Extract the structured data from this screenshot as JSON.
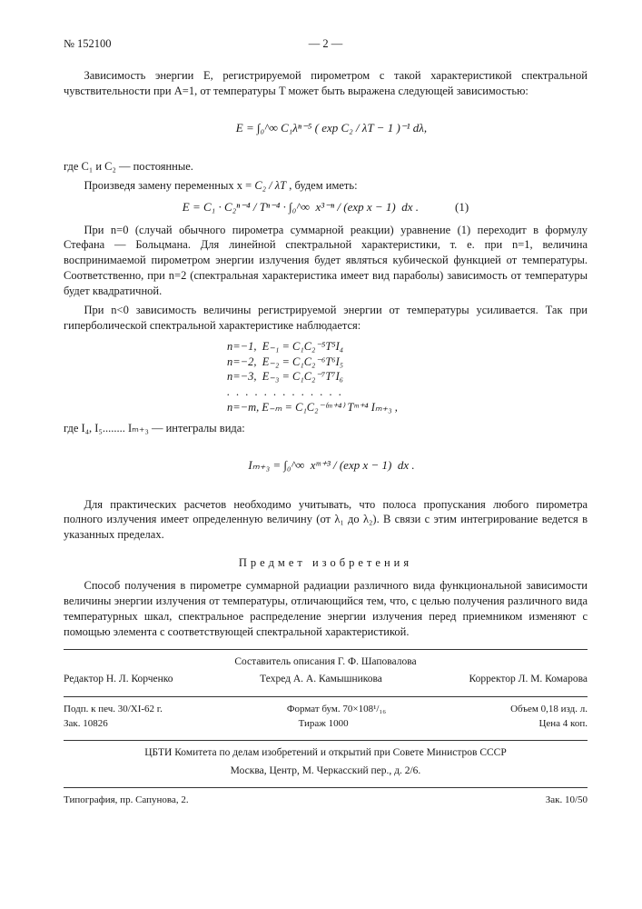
{
  "header": {
    "doc_number": "№ 152100",
    "page_number": "— 2 —"
  },
  "p1": "Зависимость энергии E, регистрируемой пирометром с такой харак­теристикой спектральной чувствительности при A=1, от температуры T может быть выражена следующей зависимостью:",
  "f1": "E = ∫₀^∞ C₁λⁿ⁻⁵ ( exp C₂ / λT − 1 )⁻¹ dλ,",
  "p2": "где C₁ и C₂ — постоянные.",
  "p3_a": "Произведя замену переменных x = ",
  "p3_b": "C₂ / λT",
  "p3_c": " , будем иметь:",
  "f2": "E = C₁ · C₂ⁿ⁻⁴ / Tⁿ⁻⁴ · ∫₀^∞  x³⁻ⁿ / (exp x − 1)  dx .",
  "f2_label": "(1)",
  "p4": "При n=0 (случай обычного пирометра суммарной реакции) урав­нение (1) переходит в формулу Стефана — Больцмана. Для линейной спектральной характеристики, т. е. при n=1, величина воспринимаемой пирометром энергии излучения будет являться кубической функцией от температуры. Соответственно, при n=2 (спектральная характеристика имеет вид параболы) зависимость от температуры будет квадратичной.",
  "p5": "При n<0 зависимость величины регистрируемой энергии от темпе­ратуры усиливается. Так при гиперболической спектральной характери­стике наблюдается:",
  "cases": [
    "n=−1,  E₋₁ = C₁C₂⁻⁵T⁵I₄",
    "n=−2,  E₋₂ = C₁C₂⁻⁶T⁶I₅",
    "n=−3,  E₋₃ = C₁C₂⁻⁷T⁷I₆",
    ". . . . . . . . . . . . .",
    "n=−m, E₋ₘ = C₁C₂⁻⁽ᵐ⁺⁴⁾ Tᵐ⁺⁴ Iₘ₊₃ ,"
  ],
  "p6": "где I₄, I₅........ Iₘ₊₃ — интегралы вида:",
  "f3": "Iₘ₊₃ = ∫₀^∞  xᵐ⁺³ / (exp x − 1)  dx .",
  "p7": "Для практических расчетов необходимо учитывать, что полоса про­пускания любого пирометра полного излучения имеет определенную ве­личину (от λ₁ до λ₂). В связи с этим интегрирование ведется в указан­ных пределах.",
  "section": "Предмет изобретения",
  "p8": "Способ получения в пирометре суммарной радиации различного вида функциональной зависимости величины энергии излучения от тем­пературы, отличающийся тем, что, с целью получения различного вида температурных шкал, спектральное распределение энергии излуче­ния перед приемником изменяют с помощью элемента с соответствую­щей спектральной характеристикой.",
  "composer": "Составитель описания Г. Ф. Шаповалова",
  "credits": {
    "editor": "Редактор Н. Л. Корченко",
    "techred": "Техред А. А. Камышникова",
    "corrector": "Корректор Л. М. Комарова"
  },
  "pub1": {
    "left": "Подп. к печ. 30/XI-62 г.",
    "mid": "Формат бум. 70×108¹/₁₆",
    "right": "Объем 0,18 изд. л."
  },
  "pub2": {
    "left": "Зак. 10826",
    "mid": "Тираж 1000",
    "right": "Цена 4 коп."
  },
  "org1": "ЦБТИ Комитета по делам изобретений и открытий при Совете Министров СССР",
  "org2": "Москва, Центр, М. Черкасский пер., д. 2/6.",
  "typo": {
    "left": "Типография, пр. Сапунова, 2.",
    "right": "Зак. 10/50"
  }
}
